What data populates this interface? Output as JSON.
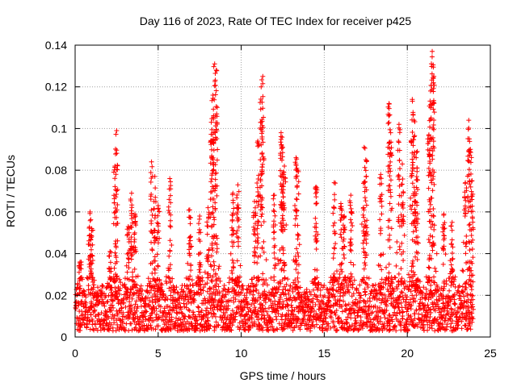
{
  "chart_data": {
    "type": "scatter",
    "title": "Day 116 of 2023, Rate Of TEC Index for receiver p425",
    "xlabel": "GPS time / hours",
    "ylabel": "ROTI / TECUs",
    "xlim": [
      0,
      25
    ],
    "ylim": [
      0,
      0.14
    ],
    "xticks": [
      0,
      5,
      10,
      15,
      20,
      25
    ],
    "yticks": [
      0,
      0.02,
      0.04,
      0.06,
      0.08,
      0.1,
      0.12,
      0.14
    ],
    "xtick_labels": [
      "0",
      "5",
      "10",
      "15",
      "20",
      "25"
    ],
    "ytick_labels": [
      "0",
      "0.02",
      "0.04",
      "0.06",
      "0.08",
      "0.1",
      "0.12",
      "0.14"
    ],
    "grid": true,
    "marker": "+",
    "color": "#ff0000",
    "series": [
      {
        "name": "ROTI",
        "note": "Dense cloud of samples 0-24 h, mostly 0.004-0.03 TECU, with peaks listed below",
        "base_range": [
          0.003,
          0.03
        ],
        "peaks": [
          {
            "x": 0.3,
            "y": 0.036
          },
          {
            "x": 0.9,
            "y": 0.06
          },
          {
            "x": 1.0,
            "y": 0.052
          },
          {
            "x": 2.1,
            "y": 0.041
          },
          {
            "x": 2.4,
            "y": 0.082
          },
          {
            "x": 2.5,
            "y": 0.099
          },
          {
            "x": 3.2,
            "y": 0.053
          },
          {
            "x": 3.4,
            "y": 0.069
          },
          {
            "x": 3.6,
            "y": 0.059
          },
          {
            "x": 4.6,
            "y": 0.084
          },
          {
            "x": 4.8,
            "y": 0.077
          },
          {
            "x": 5.0,
            "y": 0.063
          },
          {
            "x": 5.7,
            "y": 0.076
          },
          {
            "x": 6.9,
            "y": 0.061
          },
          {
            "x": 7.5,
            "y": 0.058
          },
          {
            "x": 8.0,
            "y": 0.062
          },
          {
            "x": 8.2,
            "y": 0.103
          },
          {
            "x": 8.3,
            "y": 0.116
          },
          {
            "x": 8.4,
            "y": 0.131
          },
          {
            "x": 8.5,
            "y": 0.128
          },
          {
            "x": 9.5,
            "y": 0.069
          },
          {
            "x": 9.8,
            "y": 0.073
          },
          {
            "x": 10.8,
            "y": 0.065
          },
          {
            "x": 11.0,
            "y": 0.094
          },
          {
            "x": 11.2,
            "y": 0.12
          },
          {
            "x": 11.3,
            "y": 0.125
          },
          {
            "x": 12.0,
            "y": 0.068
          },
          {
            "x": 12.4,
            "y": 0.098
          },
          {
            "x": 12.5,
            "y": 0.091
          },
          {
            "x": 12.6,
            "y": 0.082
          },
          {
            "x": 13.3,
            "y": 0.086
          },
          {
            "x": 13.4,
            "y": 0.08
          },
          {
            "x": 14.5,
            "y": 0.072
          },
          {
            "x": 15.6,
            "y": 0.074
          },
          {
            "x": 16.0,
            "y": 0.064
          },
          {
            "x": 16.2,
            "y": 0.058
          },
          {
            "x": 16.6,
            "y": 0.068
          },
          {
            "x": 17.4,
            "y": 0.091
          },
          {
            "x": 17.5,
            "y": 0.085
          },
          {
            "x": 18.4,
            "y": 0.078
          },
          {
            "x": 18.9,
            "y": 0.112
          },
          {
            "x": 19.0,
            "y": 0.098
          },
          {
            "x": 19.5,
            "y": 0.102
          },
          {
            "x": 19.7,
            "y": 0.083
          },
          {
            "x": 20.3,
            "y": 0.114
          },
          {
            "x": 20.4,
            "y": 0.104
          },
          {
            "x": 20.5,
            "y": 0.065
          },
          {
            "x": 20.6,
            "y": 0.089
          },
          {
            "x": 21.3,
            "y": 0.097
          },
          {
            "x": 21.4,
            "y": 0.118
          },
          {
            "x": 21.5,
            "y": 0.137
          },
          {
            "x": 21.6,
            "y": 0.125
          },
          {
            "x": 22.2,
            "y": 0.059
          },
          {
            "x": 22.7,
            "y": 0.055
          },
          {
            "x": 23.5,
            "y": 0.074
          },
          {
            "x": 23.7,
            "y": 0.104
          },
          {
            "x": 23.8,
            "y": 0.09
          },
          {
            "x": 23.9,
            "y": 0.075
          }
        ]
      }
    ]
  }
}
